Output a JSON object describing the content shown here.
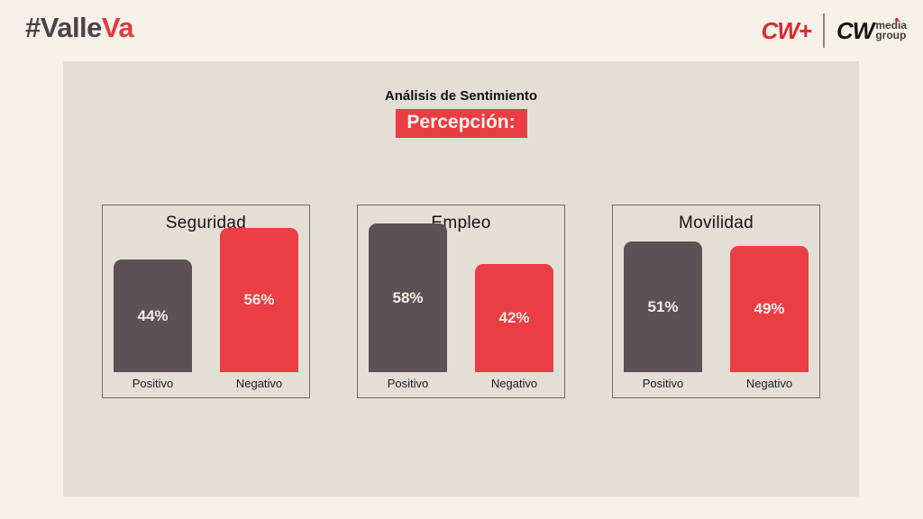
{
  "header": {
    "brand": {
      "prefix": "#Valle",
      "suffix": "Va"
    },
    "partner": {
      "cwplus": "CW+",
      "cw": "CW",
      "line1": "media",
      "line2": "group"
    }
  },
  "main": {
    "kicker": "Análisis de Sentimiento",
    "badge": "Percepción:"
  },
  "colors": {
    "page_bg": "#f6f2e9",
    "panel_bg": "#e3dfd6",
    "accent_red": "#eb3d44",
    "bar_positive": "#5d5156",
    "bar_negative": "#eb3d44",
    "brand_dark": "#4a4449",
    "brand_red": "#e6383f",
    "logo_red": "#da2a31",
    "logo_black": "#161616"
  },
  "chart_data": [
    {
      "type": "bar",
      "title": "Seguridad",
      "categories": [
        "Positivo",
        "Negativo"
      ],
      "values": [
        44,
        56
      ],
      "value_labels": [
        "44%",
        "56%"
      ],
      "bar_colors": [
        "#5d5156",
        "#eb3d44"
      ],
      "unit": "%",
      "ylim": [
        0,
        60
      ],
      "data_labels": "inside",
      "grid": false
    },
    {
      "type": "bar",
      "title": "Empleo",
      "categories": [
        "Positivo",
        "Negativo"
      ],
      "values": [
        58,
        42
      ],
      "value_labels": [
        "58%",
        "42%"
      ],
      "bar_colors": [
        "#5d5156",
        "#eb3d44"
      ],
      "unit": "%",
      "ylim": [
        0,
        60
      ],
      "data_labels": "inside",
      "grid": false
    },
    {
      "type": "bar",
      "title": "Movilidad",
      "categories": [
        "Positivo",
        "Negativo"
      ],
      "values": [
        51,
        49
      ],
      "value_labels": [
        "51%",
        "49%"
      ],
      "bar_colors": [
        "#5d5156",
        "#eb3d44"
      ],
      "unit": "%",
      "ylim": [
        0,
        60
      ],
      "data_labels": "inside",
      "grid": false
    }
  ]
}
